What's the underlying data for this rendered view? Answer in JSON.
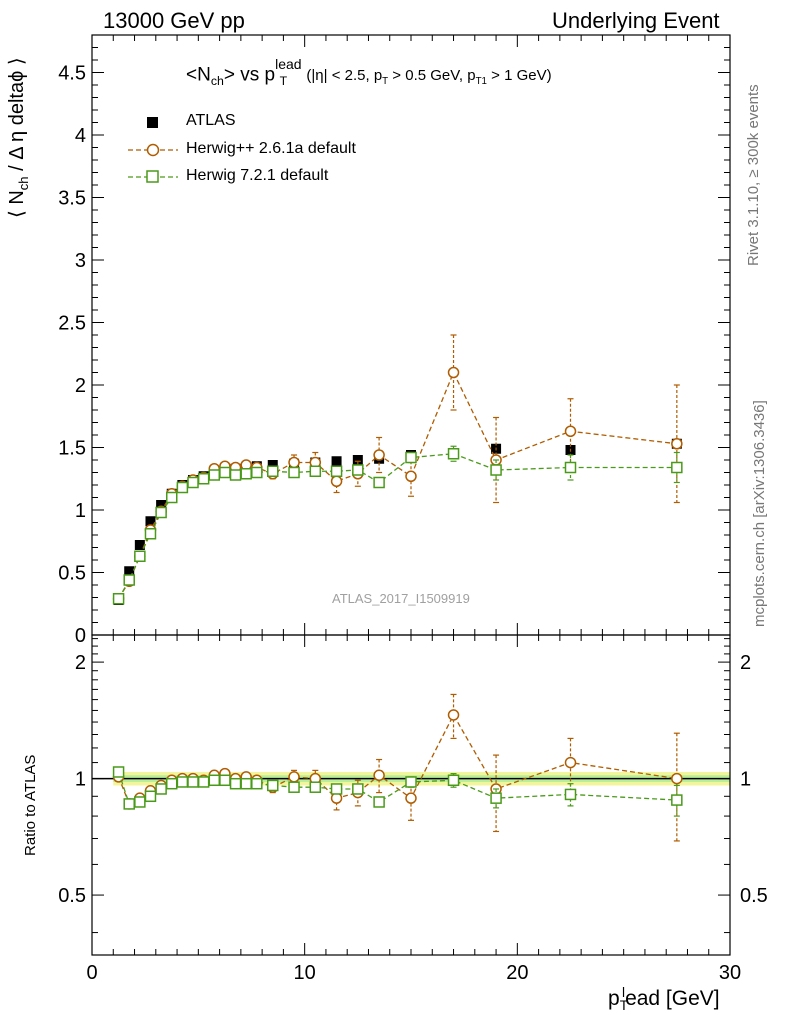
{
  "header": {
    "left": "13000 GeV pp",
    "right": "Underlying Event"
  },
  "side_texts": {
    "rivet": "Rivet 3.1.10, ≥ 300k events",
    "mcplots": "mcplots.cern.ch [arXiv:1306.3436]"
  },
  "chart_data": [
    {
      "type": "scatter",
      "title_main": "<N",
      "title_sub_ch": "ch",
      "title_vs": "> vs p",
      "title_sup": "lead",
      "title_sub_T": "T",
      "title_cuts": "(|η| < 2.5, p",
      "title_cuts_T": "T",
      "title_cuts2": " > 0.5 GeV, p",
      "title_cuts_T1": "T1",
      "title_cuts3": " > 1 GeV)",
      "ylabel_a": "⟨ N",
      "ylabel_sub": "ch",
      "ylabel_b": "/ Δ η deltaϕ ⟩",
      "watermark": "ATLAS_2017_I1509919",
      "xlim": [
        0,
        30
      ],
      "ylim": [
        0,
        4.8
      ],
      "yticks": [
        "0",
        "0.5",
        "1",
        "1.5",
        "2",
        "2.5",
        "3",
        "3.5",
        "4",
        "4.5"
      ],
      "legend_position": "top-left",
      "legend": [
        "ATLAS",
        "Herwig++ 2.6.1a default",
        "Herwig 7.2.1 default"
      ],
      "series": [
        {
          "name": "ATLAS",
          "color": "#000000",
          "x": [
            1.25,
            1.75,
            2.25,
            2.75,
            3.25,
            3.75,
            4.25,
            4.75,
            5.25,
            5.75,
            6.25,
            6.75,
            7.25,
            7.75,
            8.5,
            9.5,
            10.5,
            11.5,
            12.5,
            13.5,
            15,
            17,
            19,
            22.5,
            27.5
          ],
          "y": [
            0.28,
            0.51,
            0.72,
            0.91,
            1.04,
            1.13,
            1.2,
            1.24,
            1.27,
            1.3,
            1.31,
            1.33,
            1.34,
            1.35,
            1.36,
            1.37,
            1.38,
            1.39,
            1.4,
            1.41,
            1.44,
            1.45,
            1.49,
            1.48,
            1.53
          ]
        },
        {
          "name": "Herwig++ 2.6.1a default",
          "color": "#b05c00",
          "x": [
            1.25,
            1.75,
            2.25,
            2.75,
            3.25,
            3.75,
            4.25,
            4.75,
            5.25,
            5.75,
            6.25,
            6.75,
            7.25,
            7.75,
            8.5,
            9.5,
            10.5,
            11.5,
            12.5,
            13.5,
            15,
            17,
            19,
            22.5,
            27.5
          ],
          "y": [
            0.29,
            0.43,
            0.63,
            0.84,
            0.99,
            1.13,
            1.19,
            1.24,
            1.26,
            1.33,
            1.35,
            1.34,
            1.36,
            1.34,
            1.29,
            1.38,
            1.38,
            1.23,
            1.29,
            1.44,
            1.27,
            2.1,
            1.4,
            1.63,
            1.53
          ],
          "err": [
            0.01,
            0.01,
            0.01,
            0.01,
            0.01,
            0.01,
            0.01,
            0.01,
            0.01,
            0.02,
            0.02,
            0.02,
            0.03,
            0.03,
            0.04,
            0.06,
            0.08,
            0.09,
            0.1,
            0.14,
            0.16,
            0.3,
            0.34,
            0.26,
            0.47
          ]
        },
        {
          "name": "Herwig 7.2.1 default",
          "color": "#4a9a1a",
          "x": [
            1.25,
            1.75,
            2.25,
            2.75,
            3.25,
            3.75,
            4.25,
            4.75,
            5.25,
            5.75,
            6.25,
            6.75,
            7.25,
            7.75,
            8.5,
            9.5,
            10.5,
            11.5,
            12.5,
            13.5,
            15,
            17,
            19,
            22.5,
            27.5
          ],
          "y": [
            0.29,
            0.44,
            0.63,
            0.81,
            0.98,
            1.1,
            1.18,
            1.22,
            1.25,
            1.28,
            1.3,
            1.28,
            1.29,
            1.3,
            1.31,
            1.3,
            1.31,
            1.31,
            1.32,
            1.22,
            1.42,
            1.45,
            1.32,
            1.34,
            1.34
          ],
          "err": [
            0.01,
            0.01,
            0.01,
            0.01,
            0.01,
            0.01,
            0.01,
            0.01,
            0.01,
            0.01,
            0.01,
            0.01,
            0.01,
            0.02,
            0.02,
            0.02,
            0.02,
            0.03,
            0.03,
            0.03,
            0.04,
            0.06,
            0.08,
            0.1,
            0.12
          ]
        }
      ]
    },
    {
      "type": "scatter",
      "ylabel": "Ratio to ATLAS",
      "xlabel_a": "p",
      "xlabel_sub": "T",
      "xlabel_sup": "l",
      "xlabel_b": "ead [GeV]",
      "xlim": [
        0,
        30
      ],
      "ylim": [
        0.35,
        2.35
      ],
      "xticks": [
        "0",
        "10",
        "20",
        "30"
      ],
      "yticks": [
        "0.5",
        "1",
        "2"
      ],
      "series": [
        {
          "name": "Herwig++ 2.6.1a default",
          "color": "#b05c00",
          "x": [
            1.25,
            1.75,
            2.25,
            2.75,
            3.25,
            3.75,
            4.25,
            4.75,
            5.25,
            5.75,
            6.25,
            6.75,
            7.25,
            7.75,
            8.5,
            9.5,
            10.5,
            11.5,
            12.5,
            13.5,
            15,
            17,
            19,
            22.5,
            27.5
          ],
          "y": [
            1.01,
            0.86,
            0.89,
            0.93,
            0.96,
            0.99,
            1.0,
            1.0,
            0.99,
            1.02,
            1.03,
            1.0,
            1.01,
            0.99,
            0.95,
            1.01,
            1.0,
            0.89,
            0.92,
            1.02,
            0.89,
            1.46,
            0.94,
            1.1,
            1.0
          ],
          "err": [
            0.01,
            0.01,
            0.01,
            0.01,
            0.01,
            0.01,
            0.01,
            0.01,
            0.01,
            0.02,
            0.02,
            0.02,
            0.02,
            0.02,
            0.03,
            0.04,
            0.05,
            0.06,
            0.07,
            0.1,
            0.11,
            0.19,
            0.21,
            0.17,
            0.31
          ]
        },
        {
          "name": "Herwig 7.2.1 default",
          "color": "#4a9a1a",
          "x": [
            1.25,
            1.75,
            2.25,
            2.75,
            3.25,
            3.75,
            4.25,
            4.75,
            5.25,
            5.75,
            6.25,
            6.75,
            7.25,
            7.75,
            8.5,
            9.5,
            10.5,
            11.5,
            12.5,
            13.5,
            15,
            17,
            19,
            22.5,
            27.5
          ],
          "y": [
            1.04,
            0.86,
            0.87,
            0.9,
            0.94,
            0.97,
            0.98,
            0.98,
            0.98,
            0.99,
            0.99,
            0.97,
            0.97,
            0.97,
            0.96,
            0.95,
            0.95,
            0.94,
            0.94,
            0.87,
            0.98,
            0.99,
            0.89,
            0.91,
            0.88
          ],
          "err": [
            0.01,
            0.01,
            0.01,
            0.01,
            0.01,
            0.01,
            0.01,
            0.01,
            0.01,
            0.01,
            0.01,
            0.01,
            0.01,
            0.01,
            0.01,
            0.02,
            0.02,
            0.02,
            0.02,
            0.02,
            0.03,
            0.04,
            0.05,
            0.06,
            0.08
          ]
        }
      ]
    }
  ]
}
